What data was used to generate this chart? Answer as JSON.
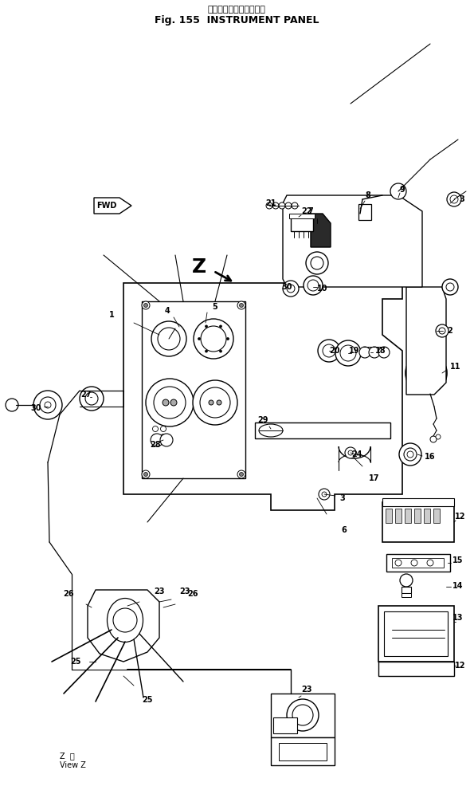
{
  "bg_color": "#ffffff",
  "line_color": "#000000",
  "fig_width": 5.95,
  "fig_height": 9.86,
  "dpi": 100,
  "title_jp": "インスツルメントパネル",
  "title_en": "Fig. 155  INSTRUMENT PANEL",
  "view_z_line1": "Z  視",
  "view_z_line2": "View Z",
  "fwd_text": "FWD",
  "z_arrow_text": "Z"
}
